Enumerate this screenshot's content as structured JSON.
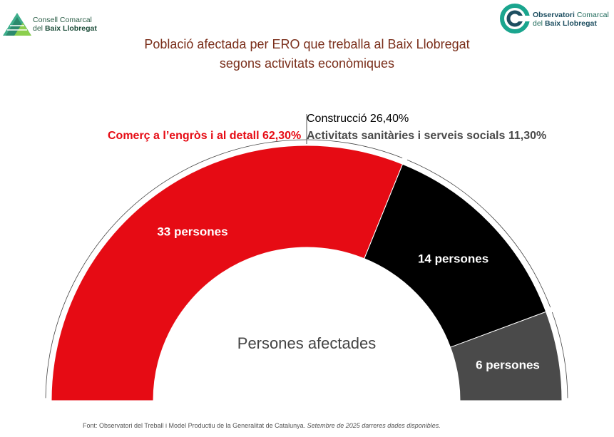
{
  "logos": {
    "left": {
      "line1": "Consell Comarcal",
      "line2_prefix": "del ",
      "line2_bold": "Baix Llobregat"
    },
    "right": {
      "line1_bold": "Observatori",
      "line1_rest": " Comarcal",
      "line2_prefix": "del ",
      "line2_bold": "Baix Llobregat"
    }
  },
  "title_line1": "Població afectada per ERO que treballa al Baix Llobregat",
  "title_line2": "segons activitats econòmiques",
  "legend": {
    "construccio": "Construcció 26,40%",
    "comerc": "Comerç a l’engròs i al detall 62,30%",
    "sanitaries": "Activitats sanitàries i serveis socials 11,30%"
  },
  "colors": {
    "title": "#7a2e1a",
    "comerc": "#e60b14",
    "construccio": "#000000",
    "sanitaries": "#4a4a4a",
    "center_text": "#444444"
  },
  "center_label": "Persones afectades",
  "footer": {
    "source": "Font: Observatori del Treball  i Model Productiu de la Generalitat de Catalunya. ",
    "note": "Setembre de 2025 darreres dades disponibles."
  },
  "chart_data": {
    "type": "half-donut",
    "categories": [
      "Comerç a l’engròs i al detall",
      "Construcció",
      "Activitats sanitàries i serveis socials"
    ],
    "values": [
      33,
      14,
      6
    ],
    "percent": [
      62.3,
      26.4,
      11.3
    ],
    "data_labels": [
      "33 persones",
      "14 persones",
      "6 persones"
    ],
    "colors": [
      "#e60b14",
      "#000000",
      "#4a4a4a"
    ]
  }
}
